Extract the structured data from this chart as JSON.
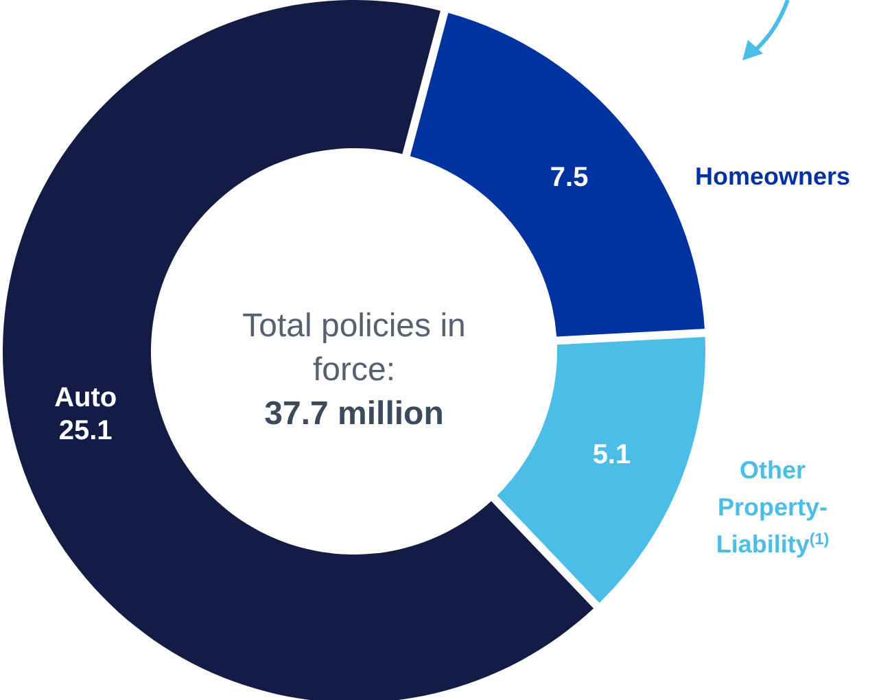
{
  "chart_data": {
    "type": "donut",
    "categories": [
      "Homeowners",
      "Other Property-Liability$^{(1)}$",
      "Auto"
    ],
    "values": [
      7.5,
      5.1,
      25.1
    ],
    "colors": [
      "#0033a0",
      "#4bbde6",
      "#131c45"
    ],
    "data_labels": true,
    "annotations": [
      "Total policies in force:",
      "37.7 million"
    ]
  }
}
